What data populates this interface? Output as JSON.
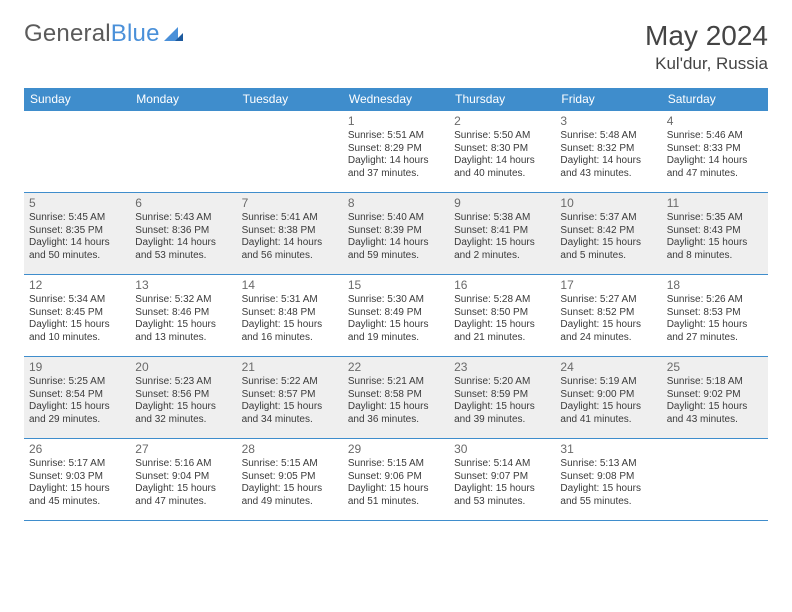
{
  "brand": {
    "w1": "General",
    "w2": "Blue"
  },
  "title": "May 2024",
  "location": "Kul'dur, Russia",
  "colors": {
    "header": "#3f8dcc",
    "alt_row": "#efefef",
    "rule": "#3f8dcc",
    "text": "#3b3b3b"
  },
  "weekdays": [
    "Sunday",
    "Monday",
    "Tuesday",
    "Wednesday",
    "Thursday",
    "Friday",
    "Saturday"
  ],
  "cells": [
    [
      null,
      null,
      null,
      {
        "n": "1",
        "sr": "5:51 AM",
        "ss": "8:29 PM",
        "dl": "14 hours and 37 minutes."
      },
      {
        "n": "2",
        "sr": "5:50 AM",
        "ss": "8:30 PM",
        "dl": "14 hours and 40 minutes."
      },
      {
        "n": "3",
        "sr": "5:48 AM",
        "ss": "8:32 PM",
        "dl": "14 hours and 43 minutes."
      },
      {
        "n": "4",
        "sr": "5:46 AM",
        "ss": "8:33 PM",
        "dl": "14 hours and 47 minutes."
      }
    ],
    [
      {
        "n": "5",
        "sr": "5:45 AM",
        "ss": "8:35 PM",
        "dl": "14 hours and 50 minutes."
      },
      {
        "n": "6",
        "sr": "5:43 AM",
        "ss": "8:36 PM",
        "dl": "14 hours and 53 minutes."
      },
      {
        "n": "7",
        "sr": "5:41 AM",
        "ss": "8:38 PM",
        "dl": "14 hours and 56 minutes."
      },
      {
        "n": "8",
        "sr": "5:40 AM",
        "ss": "8:39 PM",
        "dl": "14 hours and 59 minutes."
      },
      {
        "n": "9",
        "sr": "5:38 AM",
        "ss": "8:41 PM",
        "dl": "15 hours and 2 minutes."
      },
      {
        "n": "10",
        "sr": "5:37 AM",
        "ss": "8:42 PM",
        "dl": "15 hours and 5 minutes."
      },
      {
        "n": "11",
        "sr": "5:35 AM",
        "ss": "8:43 PM",
        "dl": "15 hours and 8 minutes."
      }
    ],
    [
      {
        "n": "12",
        "sr": "5:34 AM",
        "ss": "8:45 PM",
        "dl": "15 hours and 10 minutes."
      },
      {
        "n": "13",
        "sr": "5:32 AM",
        "ss": "8:46 PM",
        "dl": "15 hours and 13 minutes."
      },
      {
        "n": "14",
        "sr": "5:31 AM",
        "ss": "8:48 PM",
        "dl": "15 hours and 16 minutes."
      },
      {
        "n": "15",
        "sr": "5:30 AM",
        "ss": "8:49 PM",
        "dl": "15 hours and 19 minutes."
      },
      {
        "n": "16",
        "sr": "5:28 AM",
        "ss": "8:50 PM",
        "dl": "15 hours and 21 minutes."
      },
      {
        "n": "17",
        "sr": "5:27 AM",
        "ss": "8:52 PM",
        "dl": "15 hours and 24 minutes."
      },
      {
        "n": "18",
        "sr": "5:26 AM",
        "ss": "8:53 PM",
        "dl": "15 hours and 27 minutes."
      }
    ],
    [
      {
        "n": "19",
        "sr": "5:25 AM",
        "ss": "8:54 PM",
        "dl": "15 hours and 29 minutes."
      },
      {
        "n": "20",
        "sr": "5:23 AM",
        "ss": "8:56 PM",
        "dl": "15 hours and 32 minutes."
      },
      {
        "n": "21",
        "sr": "5:22 AM",
        "ss": "8:57 PM",
        "dl": "15 hours and 34 minutes."
      },
      {
        "n": "22",
        "sr": "5:21 AM",
        "ss": "8:58 PM",
        "dl": "15 hours and 36 minutes."
      },
      {
        "n": "23",
        "sr": "5:20 AM",
        "ss": "8:59 PM",
        "dl": "15 hours and 39 minutes."
      },
      {
        "n": "24",
        "sr": "5:19 AM",
        "ss": "9:00 PM",
        "dl": "15 hours and 41 minutes."
      },
      {
        "n": "25",
        "sr": "5:18 AM",
        "ss": "9:02 PM",
        "dl": "15 hours and 43 minutes."
      }
    ],
    [
      {
        "n": "26",
        "sr": "5:17 AM",
        "ss": "9:03 PM",
        "dl": "15 hours and 45 minutes."
      },
      {
        "n": "27",
        "sr": "5:16 AM",
        "ss": "9:04 PM",
        "dl": "15 hours and 47 minutes."
      },
      {
        "n": "28",
        "sr": "5:15 AM",
        "ss": "9:05 PM",
        "dl": "15 hours and 49 minutes."
      },
      {
        "n": "29",
        "sr": "5:15 AM",
        "ss": "9:06 PM",
        "dl": "15 hours and 51 minutes."
      },
      {
        "n": "30",
        "sr": "5:14 AM",
        "ss": "9:07 PM",
        "dl": "15 hours and 53 minutes."
      },
      {
        "n": "31",
        "sr": "5:13 AM",
        "ss": "9:08 PM",
        "dl": "15 hours and 55 minutes."
      },
      null
    ]
  ],
  "labels": {
    "sunrise": "Sunrise: ",
    "sunset": "Sunset: ",
    "daylight": "Daylight: "
  }
}
